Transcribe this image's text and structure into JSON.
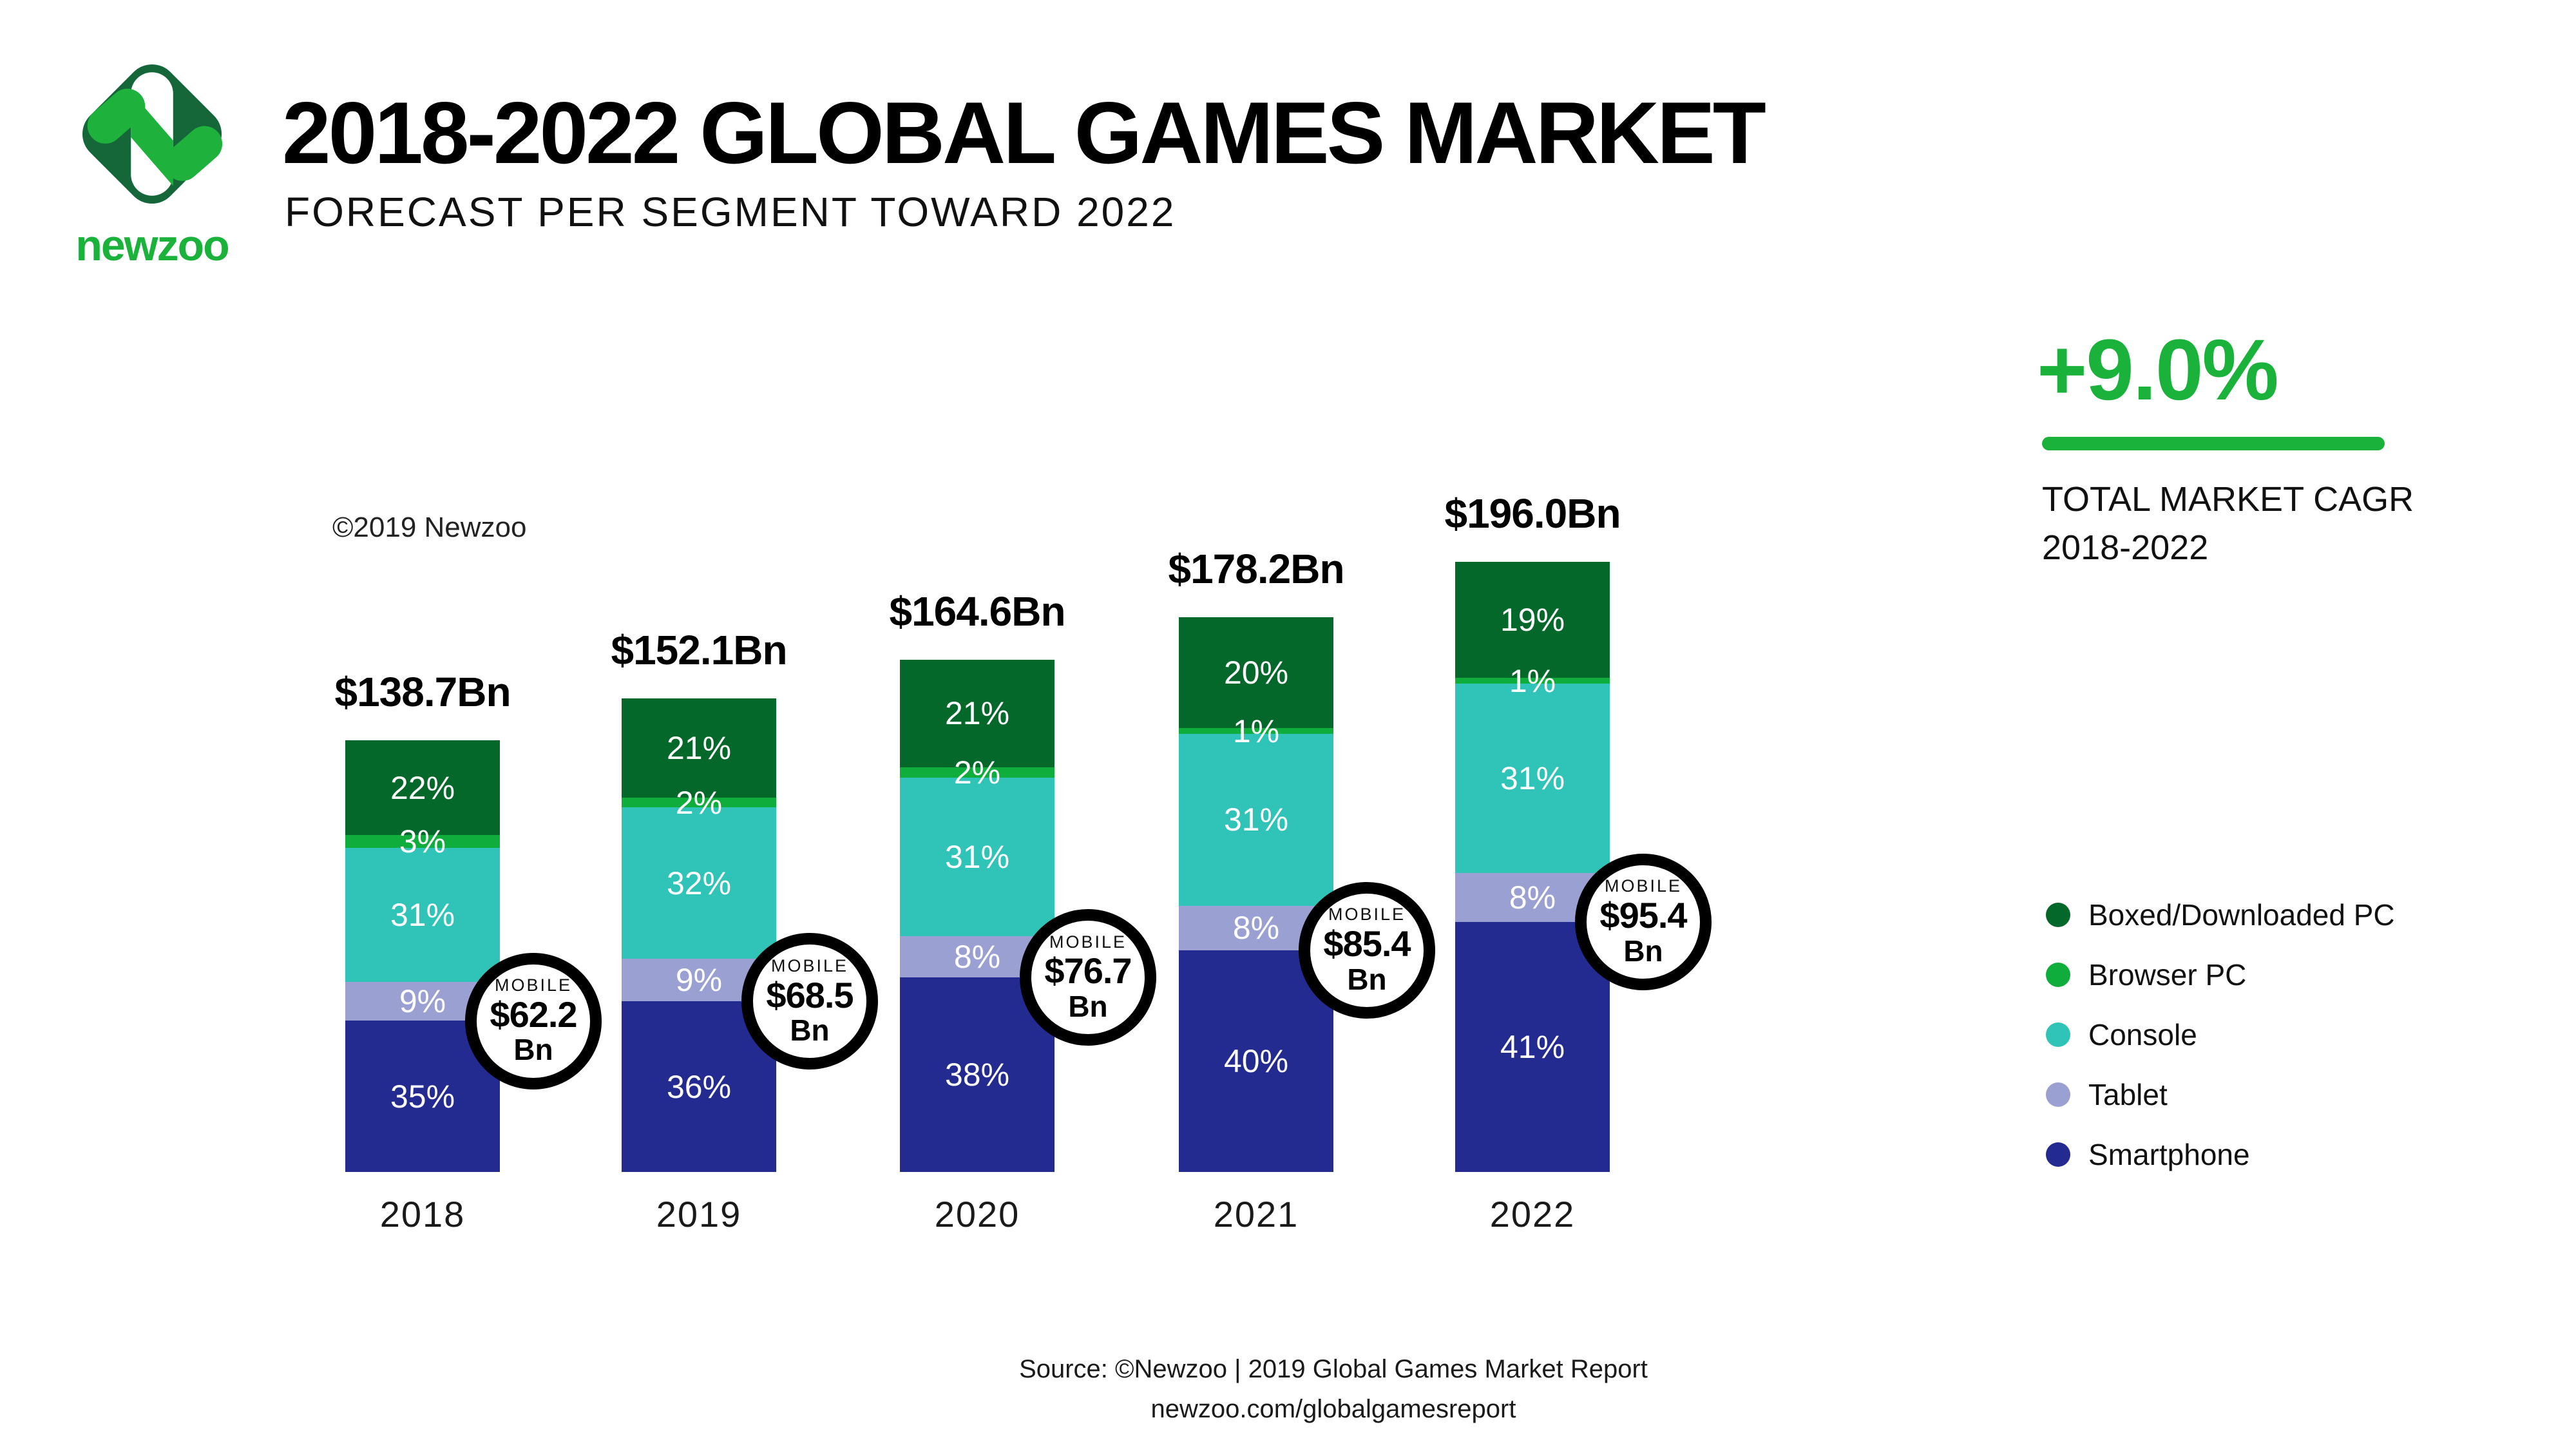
{
  "header": {
    "logo_wordmark": "newzoo",
    "title": "2018-2022 GLOBAL GAMES MARKET",
    "subtitle": "FORECAST PER SEGMENT TOWARD 2022"
  },
  "cagr": {
    "value": "+9.0%",
    "caption_line1": "TOTAL MARKET CAGR",
    "caption_line2": "2018-2022"
  },
  "copyright_note": "©2019 Newzoo",
  "chart_data": {
    "type": "bar",
    "stacked": true,
    "categories": [
      "2018",
      "2019",
      "2020",
      "2021",
      "2022"
    ],
    "totals_bn": [
      138.7,
      152.1,
      164.6,
      178.2,
      196.0
    ],
    "total_labels": [
      "$138.7Bn",
      "$152.1Bn",
      "$164.6Bn",
      "$178.2Bn",
      "$196.0Bn"
    ],
    "value_suffix": "%",
    "series": [
      {
        "name": "Boxed/Downloaded PC",
        "color": "#05682b",
        "values_pct": [
          22,
          21,
          21,
          20,
          19
        ]
      },
      {
        "name": "Browser PC",
        "color": "#0fae3c",
        "values_pct": [
          3,
          2,
          2,
          1,
          1
        ]
      },
      {
        "name": "Console",
        "color": "#2fc4b7",
        "values_pct": [
          31,
          32,
          31,
          31,
          31
        ]
      },
      {
        "name": "Tablet",
        "color": "#9ba0d2",
        "values_pct": [
          9,
          9,
          8,
          8,
          8
        ]
      },
      {
        "name": "Smartphone",
        "color": "#232a90",
        "values_pct": [
          35,
          36,
          38,
          40,
          41
        ]
      }
    ],
    "mobile_badges": {
      "title": "MOBILE",
      "unit": "Bn",
      "values": [
        "$62.2",
        "$68.5",
        "$76.7",
        "$85.4",
        "$95.4"
      ]
    },
    "legend_position": "right",
    "grid": false,
    "xlabel": "",
    "ylabel": ""
  },
  "footer": {
    "line1": "Source: ©Newzoo | 2019 Global Games Market Report",
    "line2": "newzoo.com/globalgamesreport"
  },
  "colors": {
    "accent_green": "#1bb23c",
    "logo_dark_green": "#15673a",
    "background": "#ffffff"
  }
}
